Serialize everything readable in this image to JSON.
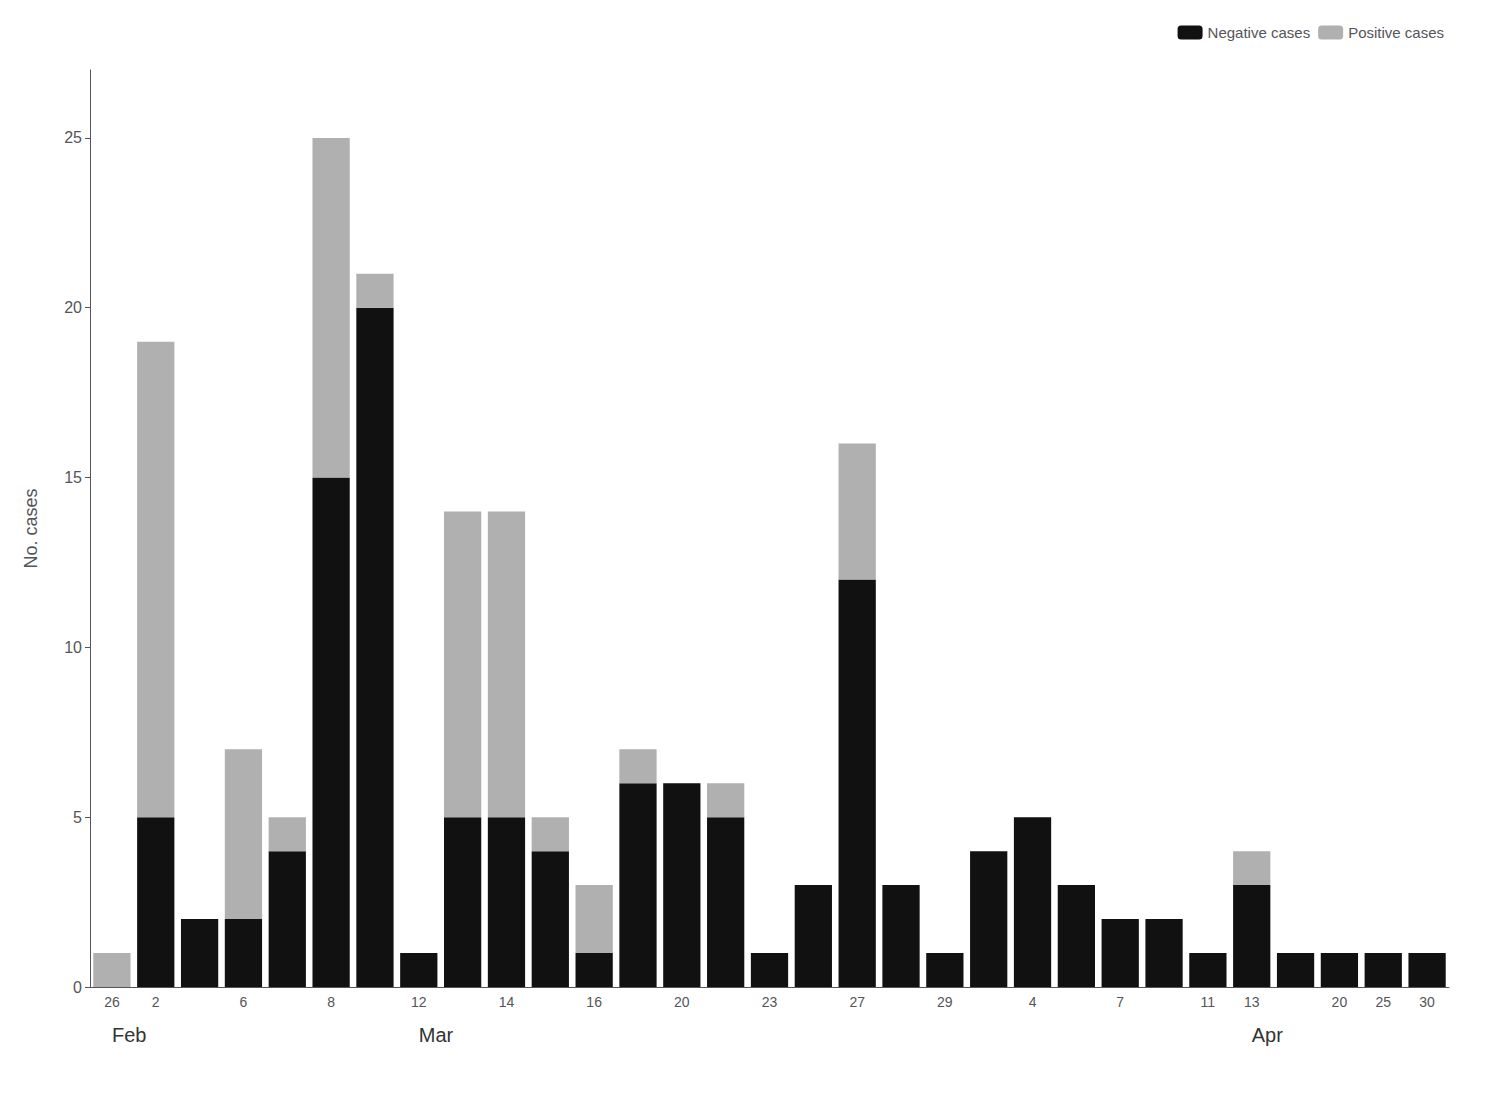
{
  "chart_data": {
    "type": "bar",
    "stacked": true,
    "categories": [
      "26",
      "2",
      null,
      "6",
      null,
      "8",
      null,
      "12",
      null,
      "14",
      null,
      "16",
      null,
      "20",
      null,
      "23",
      null,
      "27",
      null,
      "29",
      null,
      "4",
      null,
      "7",
      null,
      "11",
      "13",
      null,
      "20",
      "25",
      "30"
    ],
    "series": [
      {
        "name": "Negative cases",
        "color": "#111111",
        "values": [
          0,
          5,
          2,
          2,
          4,
          15,
          20,
          1,
          5,
          5,
          4,
          1,
          6,
          6,
          5,
          1,
          3,
          12,
          3,
          1,
          4,
          5,
          3,
          2,
          2,
          1,
          3,
          1,
          1,
          1,
          1
        ]
      },
      {
        "name": "Positive cases",
        "color": "#b0b0b0",
        "values": [
          1,
          14,
          0,
          5,
          1,
          10,
          1,
          0,
          9,
          9,
          1,
          2,
          1,
          0,
          1,
          0,
          0,
          4,
          0,
          0,
          0,
          0,
          0,
          0,
          0,
          0,
          1,
          0,
          0,
          0,
          0
        ]
      }
    ],
    "ylabel": "No. cases",
    "ylim": [
      0,
      27
    ],
    "yticks": [
      0,
      5,
      10,
      15,
      20,
      25
    ],
    "annotations": [
      {
        "text": "Feb",
        "index": 0
      },
      {
        "text": "Mar",
        "index": 7
      },
      {
        "text": "Apr",
        "index": 26
      }
    ],
    "legend": "upper right",
    "grid": false
  }
}
